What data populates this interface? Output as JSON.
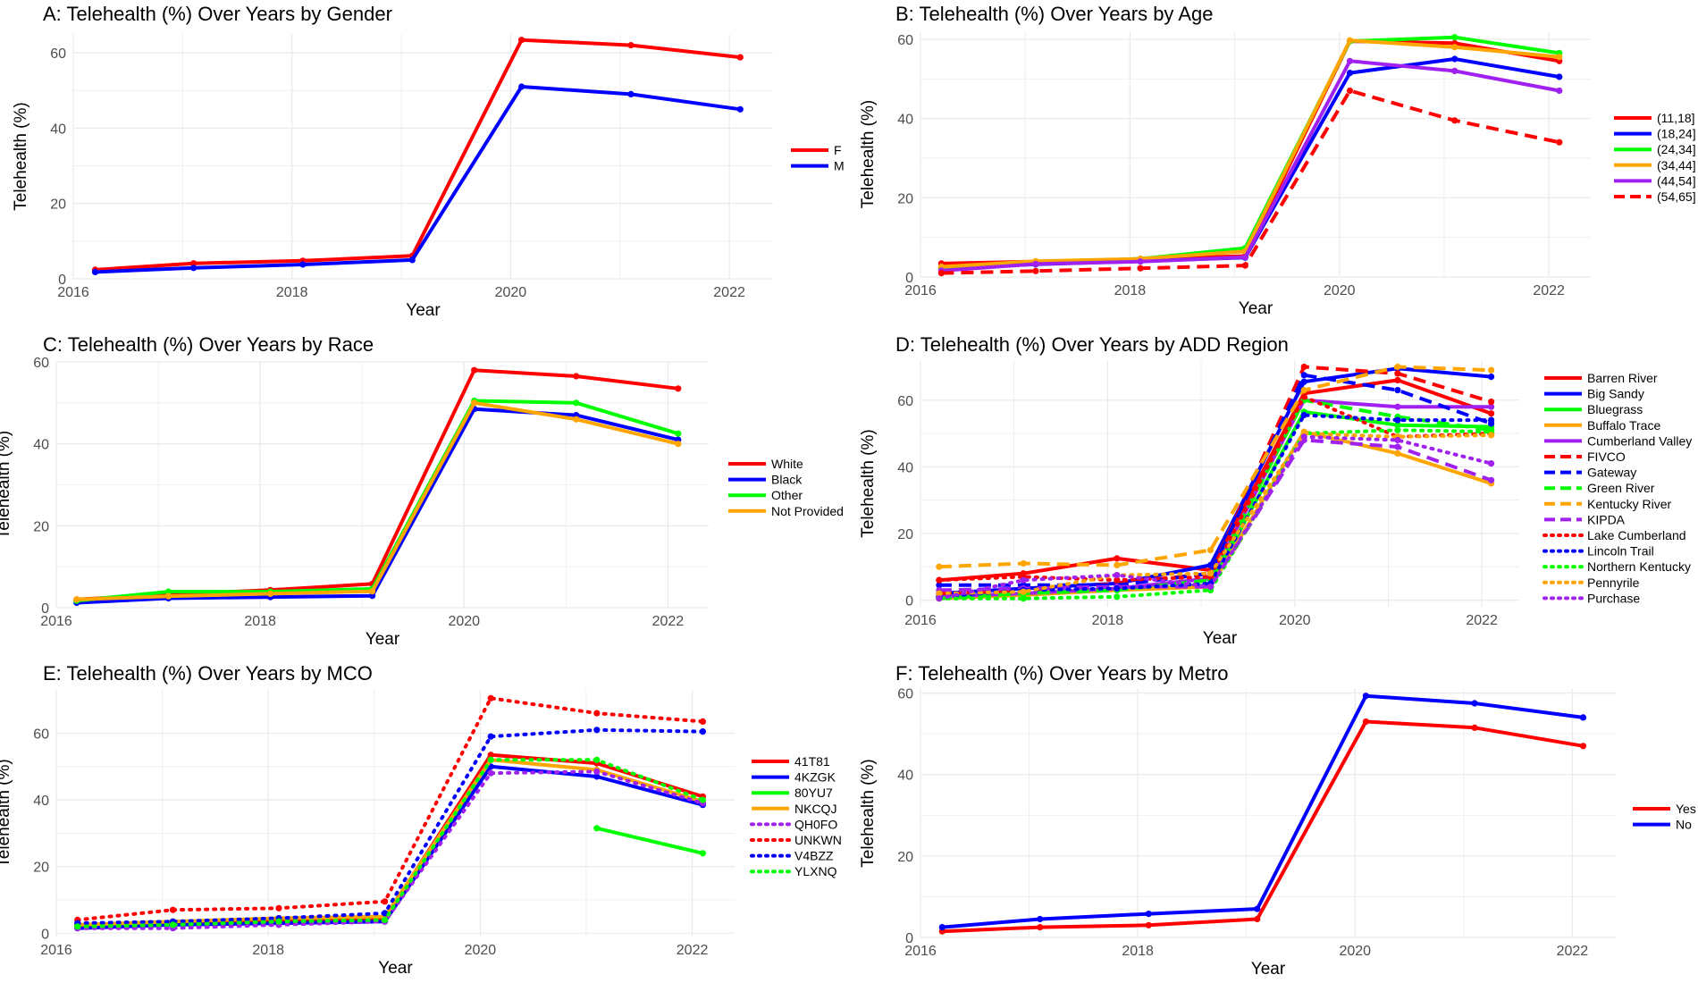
{
  "colors": {
    "red": "#ff0000",
    "blue": "#0000ff",
    "green": "#00ff00",
    "orange": "#ffa500",
    "purple": "#a020f0",
    "grid": "#ebebeb"
  },
  "chart_data": [
    {
      "type": "line",
      "title": "A: Telehealth (%) Over Years by Gender",
      "xlabel": "Year",
      "ylabel": "Telehealth (%)",
      "xlim": [
        2016,
        2022.4
      ],
      "ylim": [
        0,
        65
      ],
      "xticks": [
        2016,
        2018,
        2020,
        2022
      ],
      "yticks": [
        0,
        20,
        40,
        60
      ],
      "x": [
        2016.2,
        2017.1,
        2018.1,
        2019.1,
        2020.1,
        2021.1,
        2022.1
      ],
      "series": [
        {
          "name": "F",
          "color": "#ff0000",
          "dash": "solid",
          "values": [
            2.4,
            4.1,
            4.8,
            6.1,
            63.4,
            62.0,
            58.8
          ]
        },
        {
          "name": "M",
          "color": "#0000ff",
          "dash": "solid",
          "values": [
            1.8,
            2.9,
            3.8,
            5.0,
            51.0,
            49.0,
            45.0
          ]
        }
      ]
    },
    {
      "type": "line",
      "title": "B: Telehealth (%) Over Years by Age",
      "xlabel": "Year",
      "ylabel": "Telehealth (%)",
      "xlim": [
        2016,
        2022.4
      ],
      "ylim": [
        0,
        62
      ],
      "xticks": [
        2016,
        2018,
        2020,
        2022
      ],
      "yticks": [
        0,
        20,
        40,
        60
      ],
      "x": [
        2016.2,
        2017.1,
        2018.1,
        2019.1,
        2020.1,
        2021.1,
        2022.1
      ],
      "series": [
        {
          "name": "(11,18]",
          "color": "#ff0000",
          "dash": "solid",
          "values": [
            3.4,
            3.9,
            4.5,
            5.3,
            59.5,
            59.0,
            54.5
          ]
        },
        {
          "name": "(18,24]",
          "color": "#0000ff",
          "dash": "solid",
          "values": [
            2.2,
            3.2,
            4.0,
            4.9,
            51.5,
            55.0,
            50.5
          ]
        },
        {
          "name": "(24,34]",
          "color": "#00ff00",
          "dash": "solid",
          "values": [
            2.4,
            3.6,
            4.6,
            7.3,
            59.5,
            60.5,
            56.5
          ]
        },
        {
          "name": "(34,44]",
          "color": "#ffa500",
          "dash": "solid",
          "values": [
            2.6,
            4.0,
            4.6,
            6.5,
            59.7,
            58.0,
            55.5
          ]
        },
        {
          "name": "(44,54]",
          "color": "#a020f0",
          "dash": "solid",
          "values": [
            1.6,
            3.3,
            3.9,
            5.0,
            54.5,
            52.0,
            47.0
          ]
        },
        {
          "name": "(54,65]",
          "color": "#ff0000",
          "dash": "dashed",
          "values": [
            1.0,
            1.5,
            2.2,
            2.9,
            47.0,
            39.5,
            34.0
          ]
        }
      ]
    },
    {
      "type": "line",
      "title": "C: Telehealth (%) Over Years by Race",
      "xlabel": "Year",
      "ylabel": "Telehealth (%)",
      "xlim": [
        2016,
        2022.4
      ],
      "ylim": [
        0,
        60
      ],
      "xticks": [
        2016,
        2018,
        2020,
        2022
      ],
      "yticks": [
        0,
        20,
        40,
        60
      ],
      "x": [
        2016.2,
        2017.1,
        2018.1,
        2019.1,
        2020.1,
        2021.1,
        2022.1
      ],
      "series": [
        {
          "name": "White",
          "color": "#ff0000",
          "dash": "solid",
          "values": [
            2.0,
            3.2,
            4.3,
            5.8,
            58.0,
            56.5,
            53.5
          ]
        },
        {
          "name": "Black",
          "color": "#0000ff",
          "dash": "solid",
          "values": [
            1.2,
            2.3,
            2.6,
            2.9,
            48.5,
            47.0,
            41.0
          ]
        },
        {
          "name": "Other",
          "color": "#00ff00",
          "dash": "solid",
          "values": [
            1.7,
            3.9,
            3.9,
            4.6,
            50.5,
            50.0,
            42.5
          ]
        },
        {
          "name": "Not Provided",
          "color": "#ffa500",
          "dash": "solid",
          "values": [
            2.0,
            2.8,
            3.4,
            4.0,
            50.0,
            46.0,
            40.0
          ]
        }
      ]
    },
    {
      "type": "line",
      "title": "D: Telehealth (%) Over Years by ADD Region",
      "xlabel": "Year",
      "ylabel": "Telehealth (%)",
      "xlim": [
        2016,
        2022.4
      ],
      "ylim": [
        -2,
        72
      ],
      "xticks": [
        2016,
        2018,
        2020,
        2022
      ],
      "yticks": [
        0,
        20,
        40,
        60
      ],
      "x": [
        2016.2,
        2017.1,
        2018.1,
        2019.1,
        2020.1,
        2021.1,
        2022.1
      ],
      "series": [
        {
          "name": "Barren River",
          "color": "#ff0000",
          "dash": "solid",
          "values": [
            6.0,
            8.0,
            12.5,
            9.0,
            62.0,
            66.0,
            56.0
          ]
        },
        {
          "name": "Big Sandy",
          "color": "#0000ff",
          "dash": "solid",
          "values": [
            2.0,
            3.5,
            5.0,
            10.5,
            65.5,
            69.5,
            67.0
          ]
        },
        {
          "name": "Bluegrass",
          "color": "#00ff00",
          "dash": "solid",
          "values": [
            1.0,
            2.0,
            3.0,
            4.5,
            56.5,
            52.5,
            52.0
          ]
        },
        {
          "name": "Buffalo Trace",
          "color": "#ffa500",
          "dash": "solid",
          "values": [
            0.5,
            1.5,
            3.0,
            4.0,
            50.5,
            44.0,
            35.0
          ]
        },
        {
          "name": "Cumberland Valley",
          "color": "#a020f0",
          "dash": "solid",
          "values": [
            1.0,
            2.0,
            3.5,
            6.5,
            60.0,
            58.0,
            58.0
          ]
        },
        {
          "name": "FIVCO",
          "color": "#ff0000",
          "dash": "dashed",
          "values": [
            2.0,
            3.0,
            5.0,
            8.0,
            70.0,
            68.0,
            59.5
          ]
        },
        {
          "name": "Gateway",
          "color": "#0000ff",
          "dash": "dashed",
          "values": [
            4.5,
            4.5,
            4.5,
            8.0,
            67.5,
            63.0,
            53.0
          ]
        },
        {
          "name": "Green River",
          "color": "#00ff00",
          "dash": "dashed",
          "values": [
            0.5,
            2.0,
            3.0,
            6.0,
            60.0,
            55.0,
            51.0
          ]
        },
        {
          "name": "Kentucky River",
          "color": "#ffa500",
          "dash": "dashed",
          "values": [
            10.0,
            11.0,
            10.5,
            15.0,
            63.0,
            70.0,
            69.0
          ]
        },
        {
          "name": "KIPDA",
          "color": "#a020f0",
          "dash": "dashed",
          "values": [
            3.0,
            3.5,
            4.0,
            4.0,
            48.0,
            46.0,
            36.0
          ]
        },
        {
          "name": "Lake Cumberland",
          "color": "#ff0000",
          "dash": "dotted",
          "values": [
            6.0,
            7.0,
            6.0,
            7.0,
            61.0,
            49.0,
            50.0
          ]
        },
        {
          "name": "Lincoln Trail",
          "color": "#0000ff",
          "dash": "dotted",
          "values": [
            1.0,
            3.0,
            3.5,
            5.0,
            55.5,
            54.0,
            54.0
          ]
        },
        {
          "name": "Northern Kentucky",
          "color": "#00ff00",
          "dash": "dotted",
          "values": [
            0.5,
            0.5,
            1.0,
            3.0,
            50.0,
            51.0,
            50.5
          ]
        },
        {
          "name": "Pennyrile",
          "color": "#ffa500",
          "dash": "dotted",
          "values": [
            2.0,
            2.5,
            7.5,
            8.0,
            50.0,
            49.0,
            49.5
          ]
        },
        {
          "name": "Purchase",
          "color": "#a020f0",
          "dash": "dotted",
          "values": [
            0.5,
            6.0,
            7.5,
            4.0,
            49.0,
            48.0,
            41.0
          ]
        }
      ]
    },
    {
      "type": "line",
      "title": "E: Telehealth (%) Over Years by MCO",
      "xlabel": "Year",
      "ylabel": "Telehealth (%)",
      "xlim": [
        2016,
        2022.4
      ],
      "ylim": [
        -1,
        73
      ],
      "xticks": [
        2016,
        2018,
        2020,
        2022
      ],
      "yticks": [
        0,
        20,
        40,
        60
      ],
      "x": [
        2016.2,
        2017.1,
        2018.1,
        2019.1,
        2020.1,
        2021.1,
        2022.1
      ],
      "series": [
        {
          "name": "41T81",
          "color": "#ff0000",
          "dash": "solid",
          "values": [
            2.0,
            3.0,
            3.5,
            4.5,
            53.5,
            51.0,
            41.0
          ]
        },
        {
          "name": "4KZGK",
          "color": "#0000ff",
          "dash": "solid",
          "values": [
            1.5,
            2.5,
            3.0,
            3.5,
            50.0,
            47.0,
            38.5
          ]
        },
        {
          "name": "80YU7",
          "color": "#00ff00",
          "dash": "solid",
          "values": [
            null,
            null,
            null,
            null,
            null,
            31.5,
            24.0
          ]
        },
        {
          "name": "NKCQJ",
          "color": "#ffa500",
          "dash": "solid",
          "values": [
            2.5,
            3.5,
            4.5,
            5.0,
            52.0,
            49.0,
            39.5
          ]
        },
        {
          "name": "QH0FO",
          "color": "#a020f0",
          "dash": "dotted",
          "values": [
            1.5,
            1.5,
            2.5,
            3.5,
            48.0,
            48.5,
            39.0
          ]
        },
        {
          "name": "UNKWN",
          "color": "#ff0000",
          "dash": "dotted",
          "values": [
            4.0,
            7.0,
            7.5,
            9.5,
            70.5,
            66.0,
            63.5
          ]
        },
        {
          "name": "V4BZZ",
          "color": "#0000ff",
          "dash": "dotted",
          "values": [
            3.0,
            3.5,
            4.5,
            6.0,
            59.0,
            61.0,
            60.5
          ]
        },
        {
          "name": "YLXNQ",
          "color": "#00ff00",
          "dash": "dotted",
          "values": [
            2.0,
            2.5,
            3.5,
            4.0,
            52.0,
            52.0,
            40.0
          ]
        }
      ]
    },
    {
      "type": "line",
      "title": "F: Telehealth (%) Over Years by Metro",
      "xlabel": "Year",
      "ylabel": "Telehealth (%)",
      "xlim": [
        2016,
        2022.4
      ],
      "ylim": [
        0,
        61
      ],
      "xticks": [
        2016,
        2018,
        2020,
        2022
      ],
      "yticks": [
        0,
        20,
        40,
        60
      ],
      "x": [
        2016.2,
        2017.1,
        2018.1,
        2019.1,
        2020.1,
        2021.1,
        2022.1
      ],
      "series": [
        {
          "name": "Yes",
          "color": "#ff0000",
          "dash": "solid",
          "values": [
            1.5,
            2.5,
            3.0,
            4.5,
            53.0,
            51.5,
            47.0
          ]
        },
        {
          "name": "No",
          "color": "#0000ff",
          "dash": "solid",
          "values": [
            2.5,
            4.5,
            5.8,
            7.0,
            59.3,
            57.5,
            54.0
          ]
        }
      ]
    }
  ]
}
